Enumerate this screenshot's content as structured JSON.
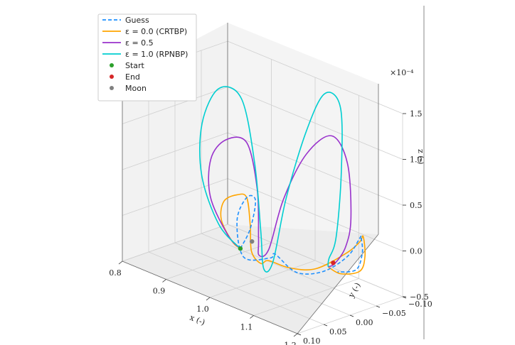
{
  "chart_data": {
    "type": "line3d",
    "xlabel": "x (-)",
    "ylabel": "y (-)",
    "zlabel": "z (-)",
    "z_multiplier": "×10⁻⁴",
    "x_ticks": [
      "0.8",
      "0.9",
      "1.0",
      "1.1",
      "1.2"
    ],
    "y_ticks": [
      "−0.10",
      "−0.05",
      "0.00",
      "0.05",
      "0.10"
    ],
    "z_ticks": [
      "−0.5",
      "0.0",
      "0.5",
      "1.0",
      "1.5"
    ],
    "xlim": [
      0.8,
      1.2
    ],
    "ylim": [
      -0.1,
      0.1
    ],
    "zlim": [
      -0.5,
      1.5
    ],
    "grid": true,
    "legend_position": "top-left",
    "legend": [
      {
        "label": "Guess",
        "color": "#1e90ff",
        "style": "dashed"
      },
      {
        "label": "ε = 0.0 (CRTBP)",
        "color": "#ffa500",
        "style": "solid"
      },
      {
        "label": "ε = 0.5",
        "color": "#9932cc",
        "style": "solid"
      },
      {
        "label": "ε = 1.0 (RPNBP)",
        "color": "#00ced1",
        "style": "solid"
      },
      {
        "label": "Start",
        "color": "#2ca02c",
        "style": "marker"
      },
      {
        "label": "End",
        "color": "#d62728",
        "style": "marker"
      },
      {
        "label": "Moon",
        "color": "#808080",
        "style": "marker"
      }
    ],
    "series": [
      {
        "name": "Guess",
        "points": [
          [
            0.935,
            -0.012,
            -0.32
          ],
          [
            0.96,
            -0.01,
            -0.05
          ],
          [
            0.99,
            0.005,
            0.35
          ],
          [
            1.0,
            0.03,
            0.45
          ],
          [
            0.99,
            0.04,
            0.2
          ],
          [
            0.975,
            0.015,
            -0.28
          ],
          [
            1.0,
            -0.015,
            -0.3
          ],
          [
            1.035,
            0.005,
            -0.15
          ],
          [
            1.06,
            -0.015,
            -0.34
          ],
          [
            1.085,
            -0.045,
            -0.34
          ],
          [
            1.12,
            -0.062,
            -0.14
          ],
          [
            1.15,
            -0.06,
            0.12
          ],
          [
            1.165,
            -0.05,
            0.18
          ],
          [
            1.15,
            -0.065,
            -0.05
          ],
          [
            1.12,
            -0.078,
            -0.32
          ],
          [
            1.085,
            -0.072,
            -0.4
          ]
        ]
      },
      {
        "name": "ε = 0.0 (CRTBP)",
        "points": [
          [
            0.935,
            -0.012,
            -0.32
          ],
          [
            0.925,
            -0.005,
            -0.25
          ],
          [
            0.93,
            0.02,
            0.05
          ],
          [
            0.96,
            0.04,
            0.35
          ],
          [
            0.99,
            0.04,
            0.48
          ],
          [
            1.0,
            0.03,
            0.45
          ],
          [
            0.99,
            0.015,
            0.1
          ],
          [
            0.975,
            0.0,
            -0.25
          ],
          [
            0.99,
            -0.005,
            -0.36
          ],
          [
            1.02,
            0.005,
            -0.25
          ],
          [
            1.05,
            -0.01,
            -0.3
          ],
          [
            1.08,
            -0.035,
            -0.3
          ],
          [
            1.12,
            -0.06,
            -0.1
          ],
          [
            1.15,
            -0.06,
            0.08
          ],
          [
            1.17,
            -0.05,
            0.2
          ],
          [
            1.15,
            -0.07,
            -0.1
          ],
          [
            1.12,
            -0.085,
            -0.35
          ],
          [
            1.08,
            -0.082,
            -0.45
          ],
          [
            1.06,
            -0.075,
            -0.4
          ]
        ]
      },
      {
        "name": "ε = 0.5",
        "points": [
          [
            0.935,
            -0.012,
            -0.32
          ],
          [
            0.915,
            -0.005,
            -0.2
          ],
          [
            0.905,
            0.02,
            0.25
          ],
          [
            0.93,
            0.04,
            0.75
          ],
          [
            0.97,
            0.045,
            1.05
          ],
          [
            1.0,
            0.03,
            1.05
          ],
          [
            1.0,
            0.01,
            0.5
          ],
          [
            0.985,
            -0.005,
            -0.1
          ],
          [
            0.98,
            -0.01,
            -0.3
          ],
          [
            1.0,
            -0.012,
            -0.2
          ],
          [
            1.03,
            -0.015,
            0.4
          ],
          [
            1.07,
            -0.025,
            0.95
          ],
          [
            1.11,
            -0.04,
            1.2
          ],
          [
            1.14,
            -0.045,
            0.95
          ],
          [
            1.13,
            -0.06,
            0.3
          ],
          [
            1.1,
            -0.075,
            -0.1
          ],
          [
            1.07,
            -0.08,
            -0.35
          ],
          [
            1.06,
            -0.075,
            -0.4
          ]
        ]
      },
      {
        "name": "ε = 1.0 (RPNBP)",
        "points": [
          [
            0.935,
            -0.012,
            -0.32
          ],
          [
            0.9,
            0.0,
            -0.1
          ],
          [
            0.885,
            0.02,
            0.45
          ],
          [
            0.91,
            0.04,
            1.1
          ],
          [
            0.96,
            0.05,
            1.6
          ],
          [
            1.0,
            0.04,
            1.55
          ],
          [
            1.0,
            0.015,
            0.8
          ],
          [
            0.99,
            -0.005,
            0.0
          ],
          [
            0.985,
            -0.015,
            -0.45
          ],
          [
            1.0,
            -0.02,
            -0.35
          ],
          [
            1.03,
            -0.02,
            0.4
          ],
          [
            1.07,
            -0.025,
            1.2
          ],
          [
            1.1,
            -0.035,
            1.65
          ],
          [
            1.13,
            -0.04,
            1.55
          ],
          [
            1.12,
            -0.05,
            0.8
          ],
          [
            1.09,
            -0.065,
            0.0
          ],
          [
            1.065,
            -0.072,
            -0.3
          ],
          [
            1.06,
            -0.075,
            -0.4
          ]
        ]
      }
    ],
    "markers": [
      {
        "name": "Start",
        "point": [
          0.935,
          -0.012,
          -0.32
        ]
      },
      {
        "name": "End",
        "point": [
          1.075,
          -0.072,
          -0.32
        ]
      },
      {
        "name": "Moon",
        "point": [
          1.0,
          0.02,
          -0.05
        ]
      }
    ]
  }
}
